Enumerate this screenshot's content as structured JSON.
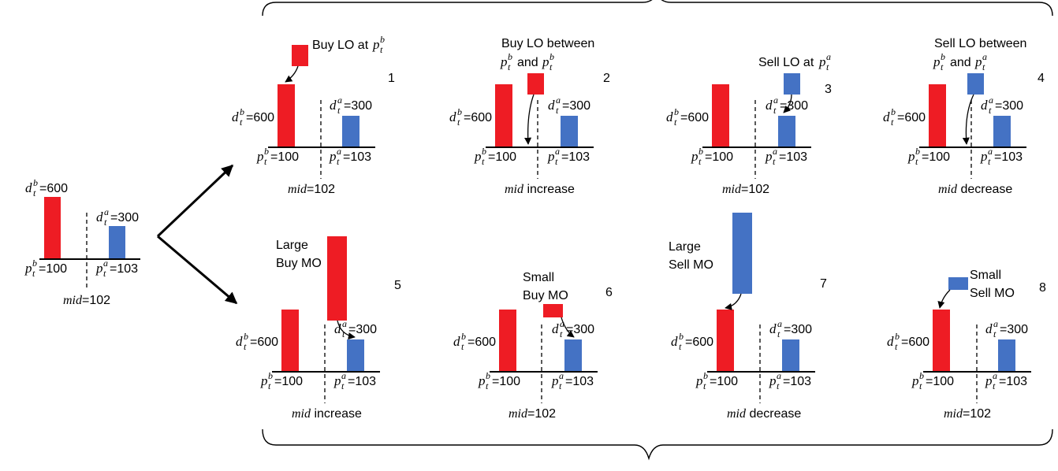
{
  "colors": {
    "bid": "#ee1c24",
    "ask": "#4472c4",
    "line": "#000000"
  },
  "initial": {
    "db": "600",
    "da": "300",
    "pb": "100",
    "pa": "103",
    "mid_value": "102"
  },
  "panels": [
    {
      "id": "1",
      "title": "Buy LO at",
      "title_tail": "p",
      "mid_text": "102",
      "mid_kind": "value"
    },
    {
      "id": "2",
      "title": "Buy LO between",
      "title2": "and",
      "mid_text": "increase",
      "mid_kind": "word"
    },
    {
      "id": "3",
      "title": "Sell LO at",
      "mid_text": "102",
      "mid_kind": "value"
    },
    {
      "id": "4",
      "title": "Sell LO between",
      "title2": "and",
      "mid_text": "decrease",
      "mid_kind": "word"
    },
    {
      "id": "5",
      "title": "Large",
      "title2": "Buy MO",
      "mid_text": "increase",
      "mid_kind": "word"
    },
    {
      "id": "6",
      "title": "Small",
      "title2": "Buy MO",
      "mid_text": "102",
      "mid_kind": "value"
    },
    {
      "id": "7",
      "title": "Large",
      "title2": "Sell MO",
      "mid_text": "decrease",
      "mid_kind": "word"
    },
    {
      "id": "8",
      "title": "Small",
      "title2": "Sell MO",
      "mid_text": "102",
      "mid_kind": "value"
    }
  ],
  "labels": {
    "mid": "mid",
    "d": "d",
    "p": "p",
    "t": "t",
    "b": "b",
    "a": "a"
  }
}
